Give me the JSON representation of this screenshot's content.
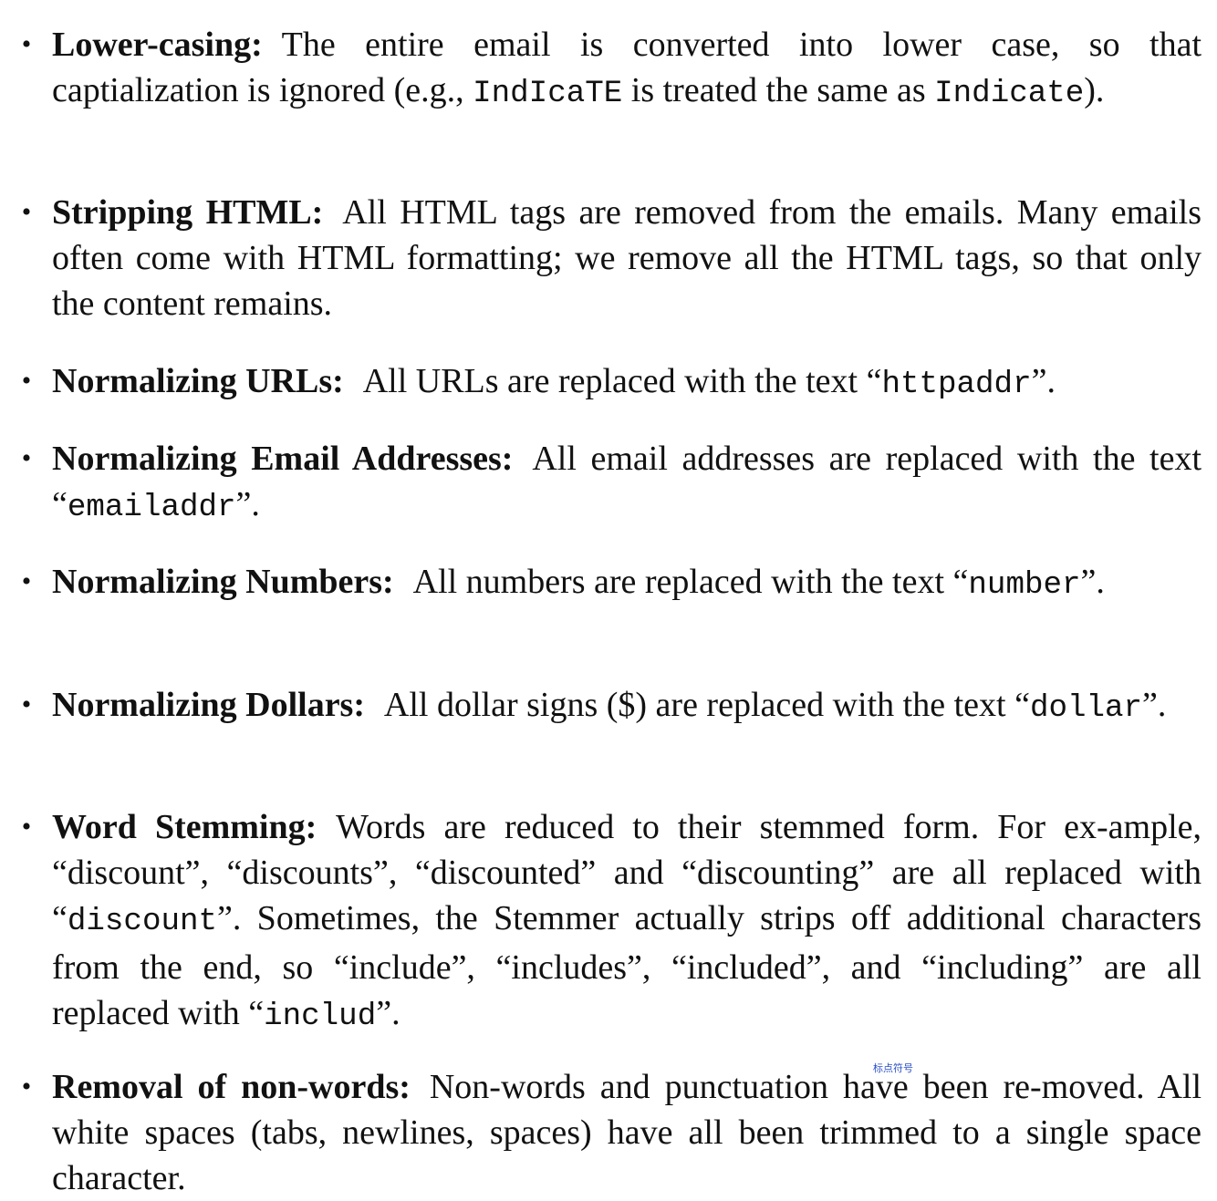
{
  "items": [
    {
      "head": "Lower-casing:",
      "t1": "The entire email is converted into lower case, so that captialization is ignored (e.g., ",
      "c1": "IndIcaTE",
      "t2": " is treated the same as ",
      "c2": "Indicate",
      "t3": ")."
    },
    {
      "head": "Stripping HTML:",
      "t1": "All HTML tags are removed from the emails. Many emails often come with HTML formatting; we remove all the HTML tags, so that only the content remains."
    },
    {
      "head": "Normalizing URLs:",
      "t1": "All URLs are replaced with the text “",
      "c1": "httpaddr",
      "t2": "”."
    },
    {
      "head": "Normalizing Email Addresses:",
      "t1": "All email addresses are replaced with the text “",
      "c1": "emailaddr",
      "t2": "”."
    },
    {
      "head": "Normalizing Numbers:",
      "t1": "All numbers are replaced with the text “",
      "c1": "number",
      "t2": "”."
    },
    {
      "head": "Normalizing Dollars:",
      "t1": "All dollar signs ($) are replaced with the text “",
      "c1": "dollar",
      "t2": "”."
    },
    {
      "head": "Word Stemming:",
      "t1": "Words are reduced to their stemmed form. For ex-ample, “discount”, “discounts”, “discounted” and “discounting” are all replaced with “",
      "c1": "discount",
      "t2": "”. Sometimes, the Stemmer actually strips off additional characters from the end, so “include”, “includes”, “included”, and “including” are all replaced with “",
      "c2": "includ",
      "t3": "”."
    },
    {
      "head": "Removal of non-words:",
      "t1": "Non-words and punctuation have been re-moved. All white spaces (tabs, newlines, spaces) have all been trimmed to a single space character."
    }
  ],
  "annotation": "标点符号"
}
